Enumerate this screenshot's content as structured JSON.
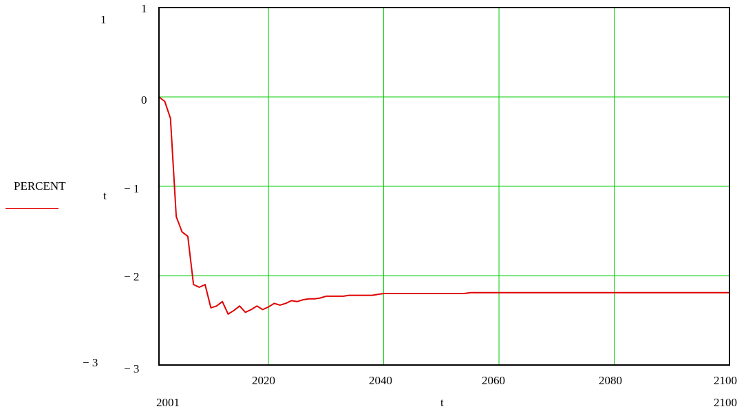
{
  "chart_data": {
    "type": "line",
    "title": "",
    "xlabel": "t",
    "ylabel": "t",
    "xlim": [
      2001,
      2100
    ],
    "ylim": [
      -3,
      1
    ],
    "x_ticks": [
      2020,
      2040,
      2060,
      2080,
      2100
    ],
    "y_ticks": [
      1,
      0,
      -1,
      -2,
      -3
    ],
    "x_tick_labels": [
      "2020",
      "2040",
      "2060",
      "2080",
      "2100"
    ],
    "y_tick_labels": [
      "1",
      "0",
      "− 1",
      "− 2",
      "− 3"
    ],
    "x_range_labels": {
      "min": "2001",
      "max": "2100"
    },
    "y_range_labels": {
      "max": "1",
      "min": "− 3"
    },
    "grid": true,
    "grid_color": "#00cc00",
    "legend_position": "left",
    "series": [
      {
        "name": "PERCENT",
        "color": "#e00000",
        "x": [
          2001,
          2002,
          2003,
          2004,
          2005,
          2006,
          2007,
          2008,
          2009,
          2010,
          2011,
          2012,
          2013,
          2014,
          2015,
          2016,
          2017,
          2018,
          2019,
          2020,
          2021,
          2022,
          2023,
          2024,
          2025,
          2026,
          2027,
          2028,
          2029,
          2030,
          2031,
          2032,
          2033,
          2034,
          2035,
          2036,
          2037,
          2038,
          2039,
          2040,
          2041,
          2045,
          2050,
          2054,
          2055,
          2060,
          2070,
          2080,
          2090,
          2100
        ],
        "y": [
          0.0,
          -0.05,
          -0.24,
          -1.34,
          -1.51,
          -1.56,
          -2.1,
          -2.13,
          -2.1,
          -2.36,
          -2.34,
          -2.29,
          -2.43,
          -2.39,
          -2.34,
          -2.41,
          -2.38,
          -2.34,
          -2.38,
          -2.35,
          -2.31,
          -2.33,
          -2.31,
          -2.28,
          -2.29,
          -2.27,
          -2.26,
          -2.26,
          -2.25,
          -2.23,
          -2.23,
          -2.23,
          -2.23,
          -2.22,
          -2.22,
          -2.22,
          -2.22,
          -2.22,
          -2.21,
          -2.2,
          -2.2,
          -2.2,
          -2.2,
          -2.2,
          -2.19,
          -2.19,
          -2.19,
          -2.19,
          -2.19,
          -2.19
        ]
      }
    ]
  }
}
